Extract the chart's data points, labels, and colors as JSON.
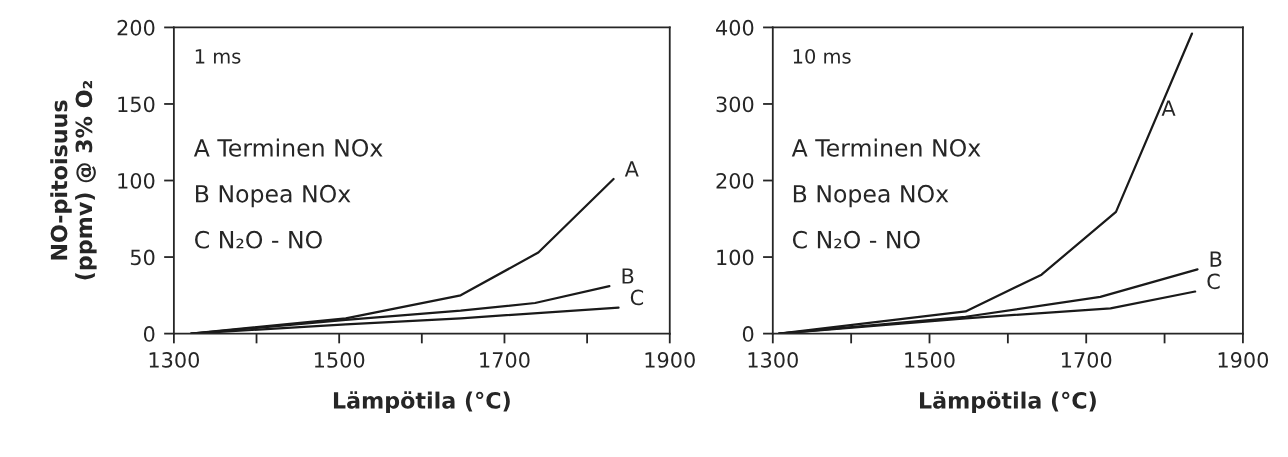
{
  "chart_data": [
    {
      "type": "line",
      "title": "1 ms",
      "xlabel": "Lämpötila (°C)",
      "ylabel": "NO-pitoisuus\n(ppmv) @ 3% O₂",
      "xlim": [
        1300,
        1900
      ],
      "xticks": [
        1300,
        {
          "value": 1400,
          "label": null
        },
        1500,
        {
          "value": 1600,
          "label": null
        },
        1700,
        {
          "value": 1800,
          "label": null
        },
        1900
      ],
      "ylim": [
        0,
        200
      ],
      "yticks": [
        0,
        50,
        100,
        150,
        200
      ],
      "grid": false,
      "legend": false,
      "annotations": [
        "A Terminen NOx",
        "B Nopea NOx",
        "C N₂O - NO"
      ],
      "series": [
        {
          "name": "A",
          "color": "#1a1a1a",
          "x": [
            1321,
            1508,
            1647,
            1741,
            1832
          ],
          "values": [
            0,
            10,
            25,
            53,
            101
          ]
        },
        {
          "name": "B",
          "color": "#1a1a1a",
          "x": [
            1321,
            1508,
            1647,
            1737,
            1827
          ],
          "values": [
            0,
            9,
            15,
            20,
            31
          ]
        },
        {
          "name": "C",
          "color": "#1a1a1a",
          "x": [
            1321,
            1508,
            1647,
            1838
          ],
          "values": [
            0,
            6,
            10,
            17
          ]
        }
      ]
    },
    {
      "type": "line",
      "title": "10 ms",
      "xlabel": "Lämpötila (°C)",
      "xlim": [
        1300,
        1900
      ],
      "xticks": [
        1300,
        {
          "value": 1400,
          "label": null
        },
        1500,
        {
          "value": 1600,
          "label": null
        },
        1700,
        {
          "value": 1800,
          "label": null
        },
        1900
      ],
      "ylim": [
        0,
        400
      ],
      "yticks": [
        0,
        100,
        200,
        300,
        400
      ],
      "grid": false,
      "legend": false,
      "annotations": [
        "A Terminen NOx",
        "B Nopea NOx",
        "C N₂O - NO"
      ],
      "series": [
        {
          "name": "A",
          "color": "#1a1a1a",
          "x": [
            1308,
            1546,
            1643,
            1738,
            1835
          ],
          "values": [
            0,
            29,
            77,
            159,
            392
          ]
        },
        {
          "name": "B",
          "color": "#1a1a1a",
          "x": [
            1308,
            1546,
            1718,
            1842
          ],
          "values": [
            0,
            22,
            48,
            84
          ]
        },
        {
          "name": "C",
          "color": "#1a1a1a",
          "x": [
            1308,
            1546,
            1731,
            1839
          ],
          "values": [
            0,
            20,
            33,
            55
          ]
        }
      ]
    }
  ]
}
